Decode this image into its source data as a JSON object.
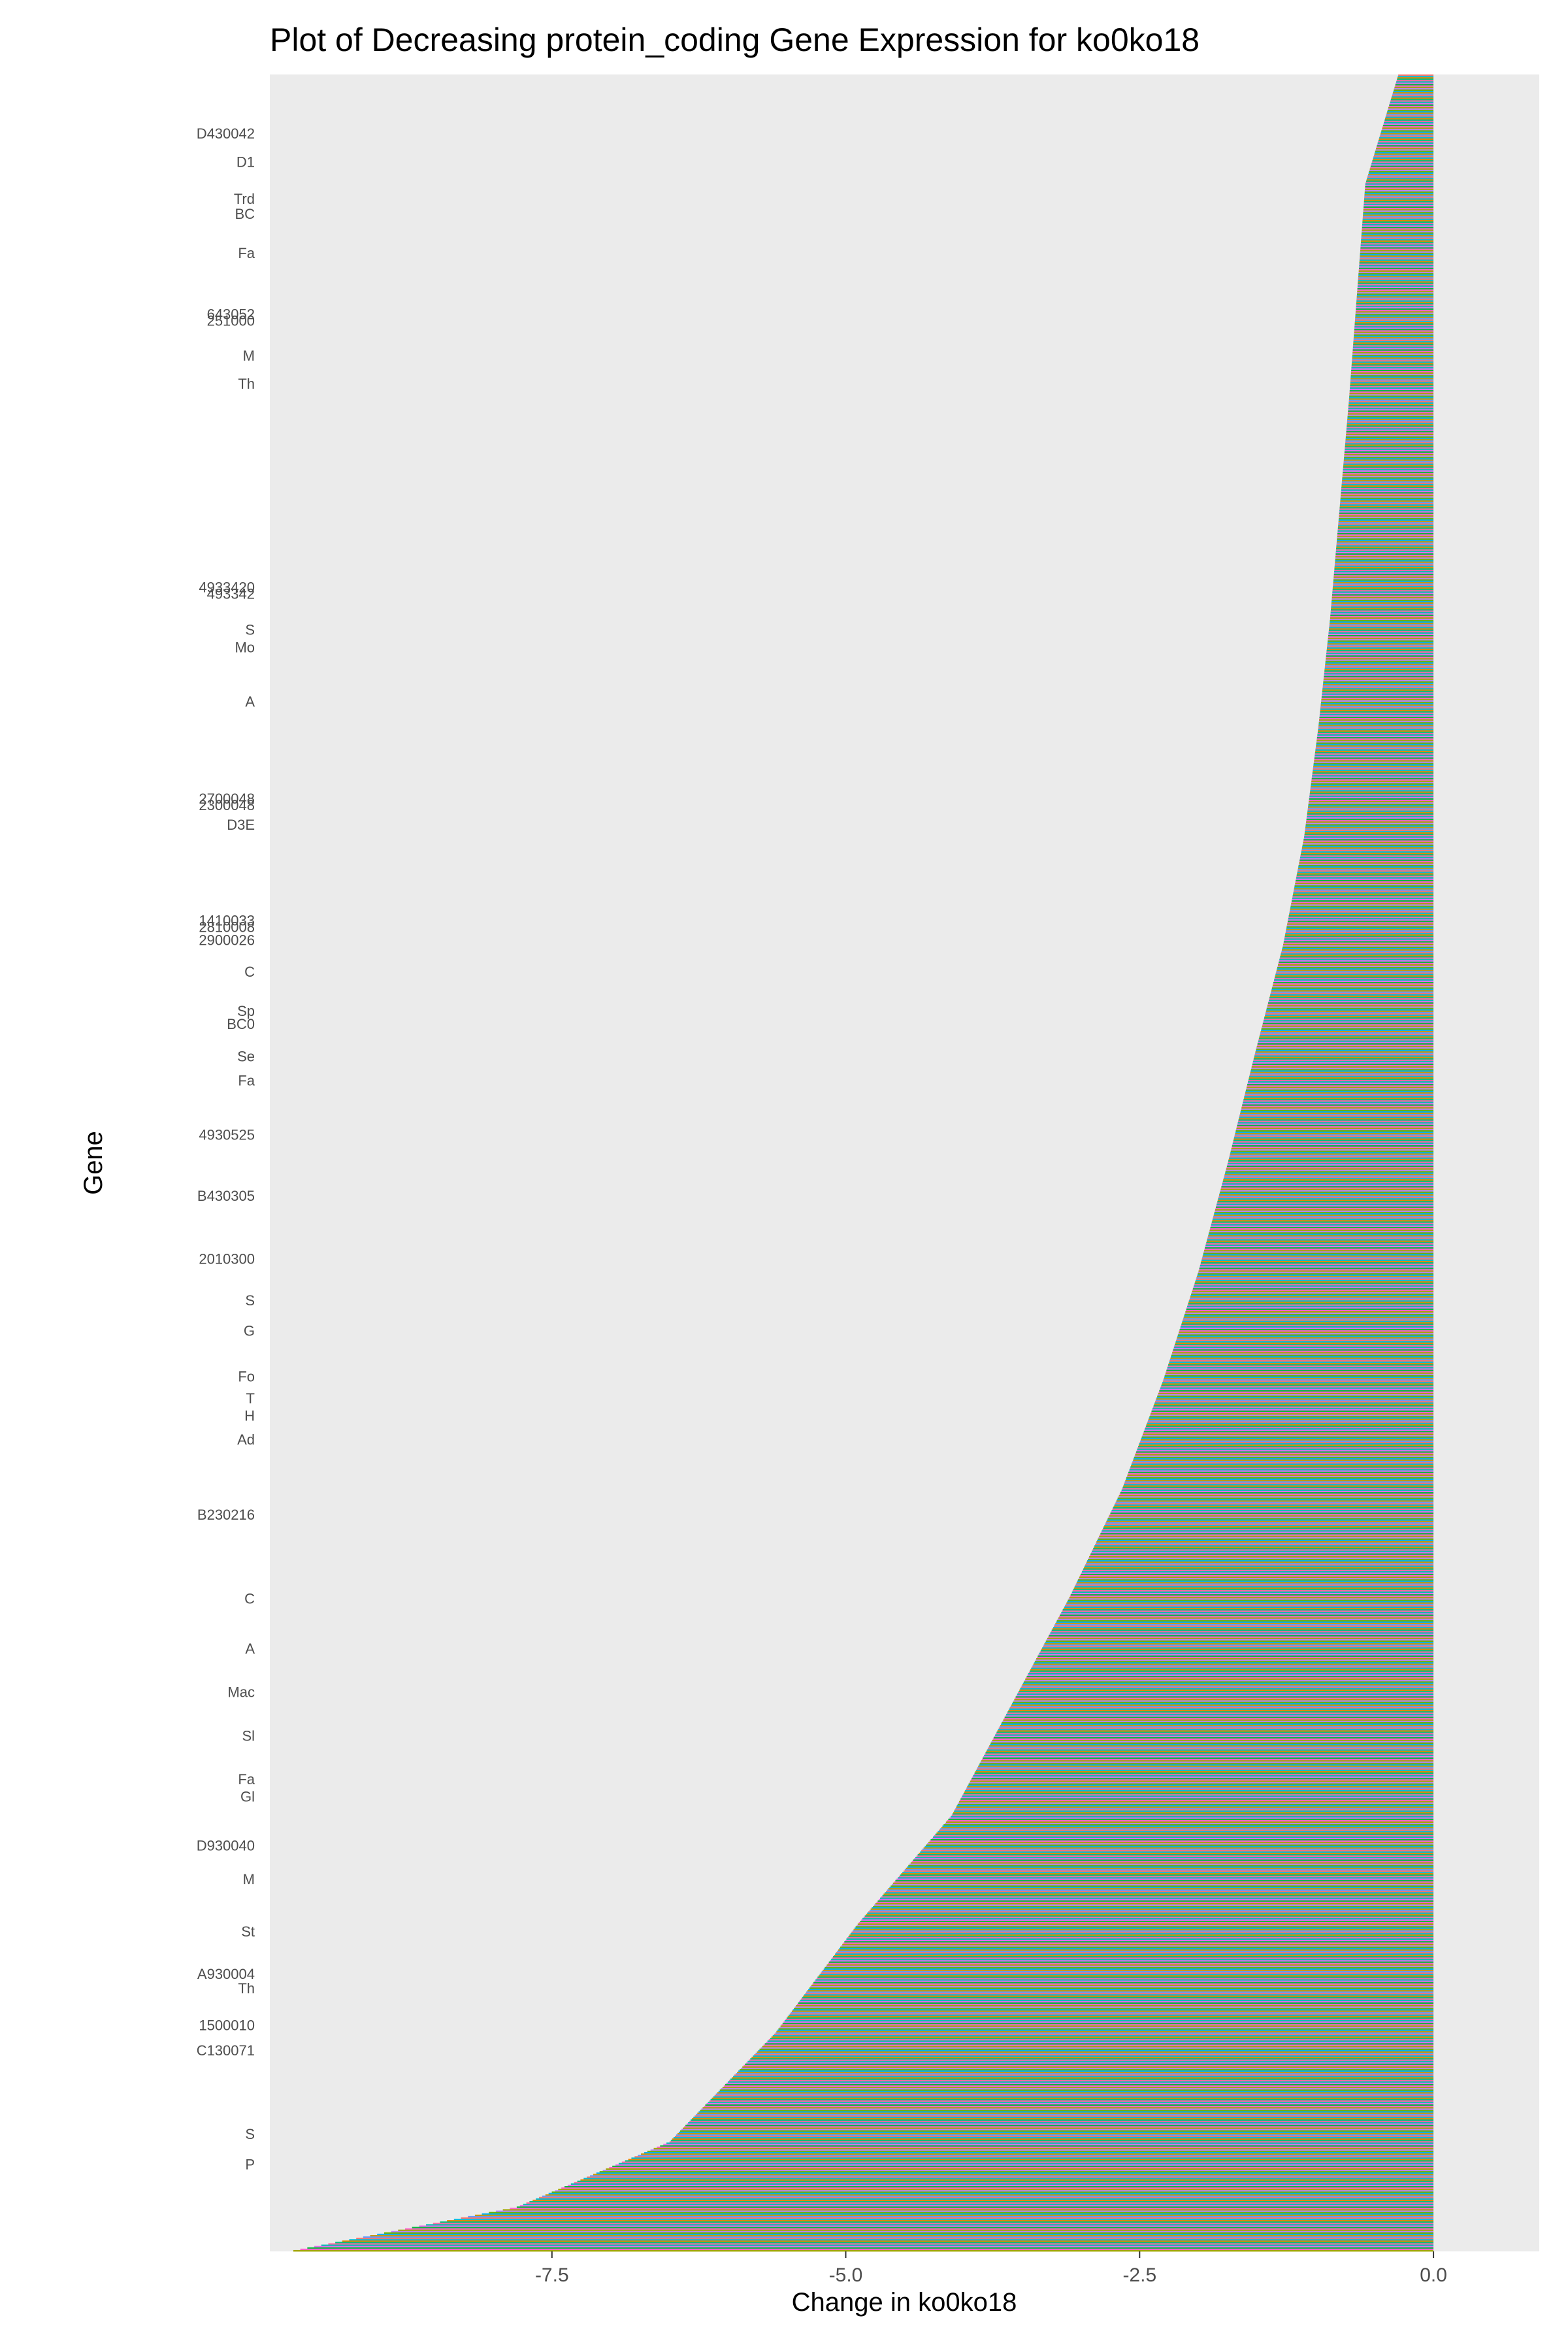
{
  "chart_data": {
    "type": "bar",
    "orientation": "horizontal",
    "title": "Plot of Decreasing protein_coding Gene Expression for ko0ko18",
    "xlabel": "Change in ko0ko18",
    "ylabel": "Gene",
    "xlim": [
      -9.9,
      0.9
    ],
    "x_ticks": [
      {
        "value": -7.5,
        "label": "-7.5"
      },
      {
        "value": -5.0,
        "label": "-5.0"
      },
      {
        "value": -2.5,
        "label": "-2.5"
      },
      {
        "value": 0.0,
        "label": "0.0"
      }
    ],
    "grid": false,
    "legend": "none",
    "panel_background": "#ebebeb",
    "approx_gene_count": 1600,
    "value_profile": {
      "description": "genes sorted so the smallest decrease is at the top and the largest at the bottom",
      "ordered_fraction": [
        0,
        0.05,
        0.1,
        0.15,
        0.2,
        0.25,
        0.3,
        0.35,
        0.4,
        0.45,
        0.5,
        0.55,
        0.6,
        0.65,
        0.7,
        0.75,
        0.8,
        0.85,
        0.9,
        0.95,
        0.98,
        1.0
      ],
      "values": [
        -0.3,
        -0.58,
        -0.65,
        -0.72,
        -0.8,
        -0.88,
        -0.98,
        -1.1,
        -1.28,
        -1.52,
        -1.75,
        -2.0,
        -2.3,
        -2.65,
        -3.1,
        -3.6,
        -4.1,
        -4.9,
        -5.6,
        -6.5,
        -7.8,
        -9.7
      ]
    },
    "visible_gene_labels": [
      "D430042",
      "D1",
      "Trd",
      "BC",
      "Fa",
      "643052",
      "251000",
      "M",
      "Th",
      "4933420",
      "493342",
      "S",
      "Mo",
      "A",
      "2700048",
      "2300048",
      "D3E",
      "1410033",
      "2810008",
      "2900026",
      "C",
      "Sp",
      "BC0",
      "Se",
      "Fa",
      "4930525",
      "B430305",
      "2010300",
      "S",
      "G",
      "Fo",
      "T",
      "H",
      "Ad",
      "B230216",
      "C",
      "A",
      "Mac",
      "Sl",
      "Fa",
      "Gl",
      "D930040",
      "M",
      "St",
      "A930004",
      "Th",
      "1500010",
      "C130071",
      "S",
      "P"
    ],
    "visible_gene_label_fractions": [
      0.027,
      0.04,
      0.057,
      0.064,
      0.082,
      0.11,
      0.113,
      0.129,
      0.142,
      0.2355,
      0.2385,
      0.255,
      0.263,
      0.288,
      0.3325,
      0.3355,
      0.3445,
      0.3885,
      0.3915,
      0.3975,
      0.412,
      0.43,
      0.436,
      0.451,
      0.462,
      0.487,
      0.515,
      0.544,
      0.563,
      0.577,
      0.598,
      0.608,
      0.616,
      0.627,
      0.6615,
      0.7,
      0.723,
      0.743,
      0.763,
      0.783,
      0.791,
      0.8135,
      0.829,
      0.853,
      0.8725,
      0.879,
      0.896,
      0.9075,
      0.946,
      0.96
    ],
    "bar_palette": [
      "#f8766d",
      "#e58700",
      "#c99800",
      "#a3a500",
      "#6bb100",
      "#00ba38",
      "#00bf7d",
      "#00c0af",
      "#00bcd8",
      "#00b0f6",
      "#619cff",
      "#b983ff",
      "#e76bf3",
      "#fd61d1",
      "#ff67a4"
    ]
  }
}
